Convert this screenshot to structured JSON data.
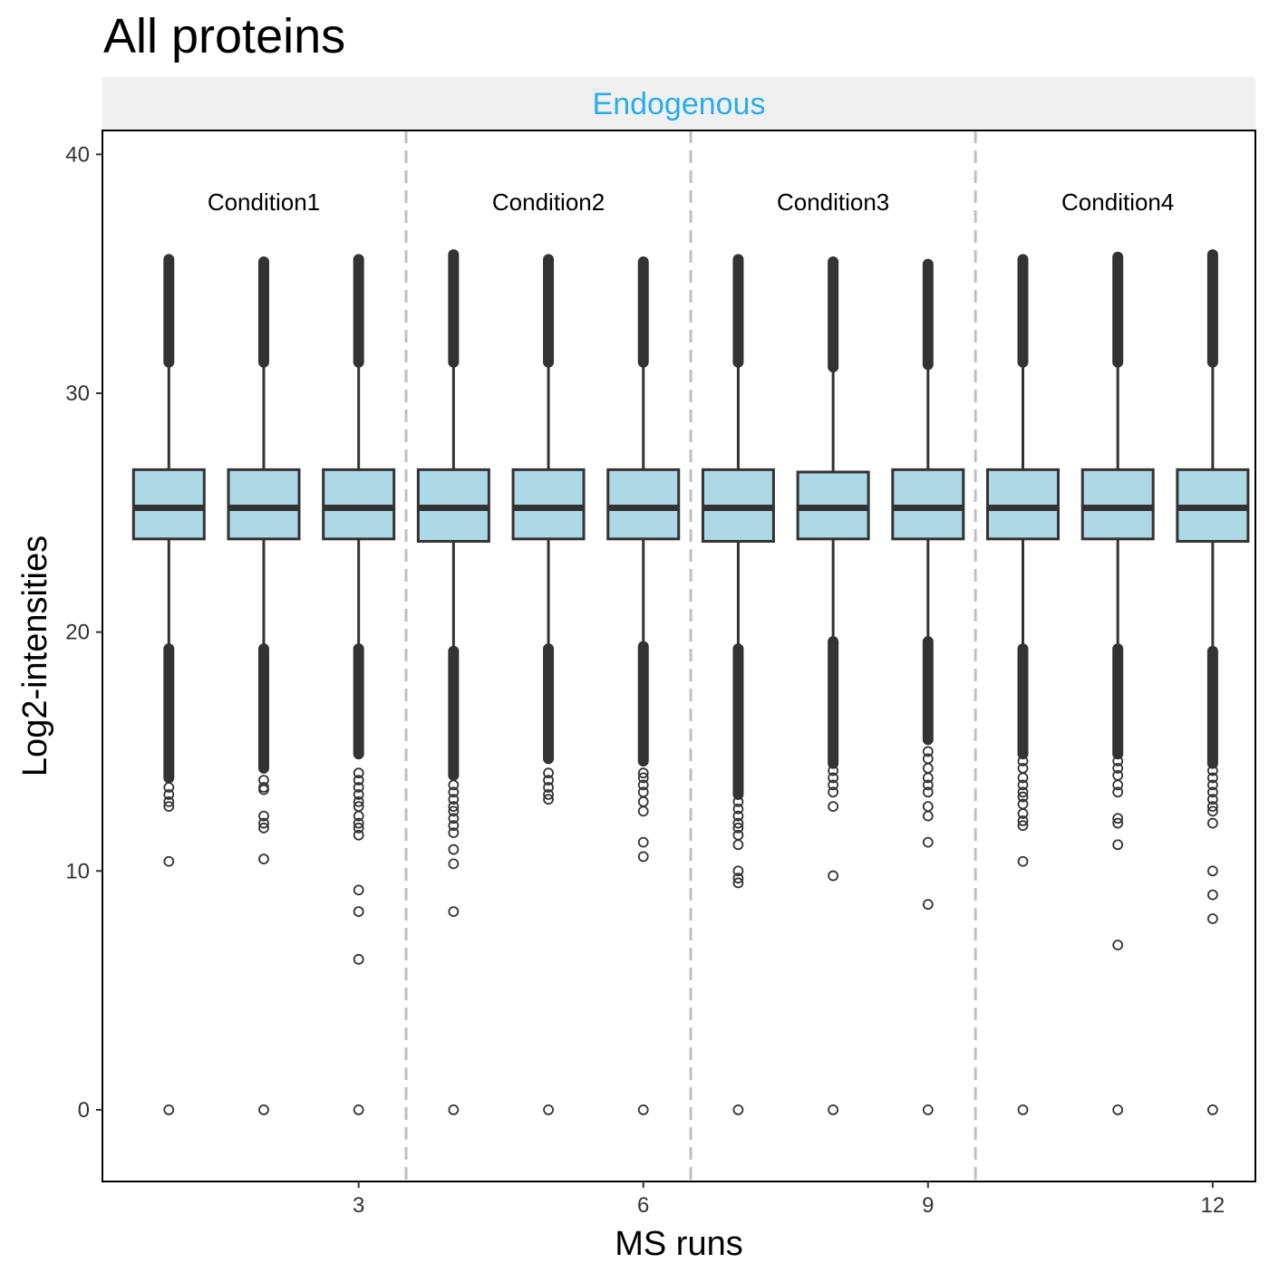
{
  "title": "All proteins",
  "facet_label": "Endogenous",
  "colors": {
    "facet_text": "#29aee8",
    "strip_bg": "#f0f0f0",
    "box_fill": "#add8e6",
    "box_stroke": "#333333",
    "separator": "#c0c0c0"
  },
  "chart_data": {
    "type": "boxplot",
    "title": "All proteins",
    "facet": "Endogenous",
    "xlabel": "MS runs",
    "ylabel": "Log2-intensities",
    "xlim": [
      0.3,
      12.45
    ],
    "ylim": [
      -3,
      41
    ],
    "x_ticks": [
      3,
      6,
      9,
      12
    ],
    "y_ticks": [
      0,
      10,
      20,
      30,
      40
    ],
    "condition_separators": [
      3.5,
      6.5,
      9.5
    ],
    "conditions": [
      {
        "label": "Condition1",
        "x": 2
      },
      {
        "label": "Condition2",
        "x": 5
      },
      {
        "label": "Condition3",
        "x": 8
      },
      {
        "label": "Condition4",
        "x": 11
      }
    ],
    "condition_label_y": 38,
    "grid": false,
    "boxes": [
      {
        "run": 1,
        "q1": 23.9,
        "median": 25.2,
        "q3": 26.8,
        "whisker_low": 19.3,
        "whisker_high": 31.3,
        "outliers_high_max": 35.6,
        "outliers_low_min": 13.9,
        "outliers": [
          13.5,
          13.2,
          12.9,
          12.7,
          10.4,
          0
        ]
      },
      {
        "run": 2,
        "q1": 23.9,
        "median": 25.2,
        "q3": 26.8,
        "whisker_low": 19.3,
        "whisker_high": 31.3,
        "outliers_high_max": 35.5,
        "outliers_low_min": 14.3,
        "outliers": [
          13.8,
          13.5,
          13.4,
          12.3,
          12.0,
          11.8,
          10.5,
          0
        ]
      },
      {
        "run": 3,
        "q1": 23.9,
        "median": 25.2,
        "q3": 26.8,
        "whisker_low": 19.3,
        "whisker_high": 31.3,
        "outliers_high_max": 35.6,
        "outliers_low_min": 14.9,
        "outliers": [
          14.1,
          13.8,
          13.5,
          13.2,
          12.9,
          12.7,
          12.3,
          12.0,
          11.8,
          11.5,
          9.2,
          8.3,
          6.3,
          0
        ]
      },
      {
        "run": 4,
        "q1": 23.8,
        "median": 25.2,
        "q3": 26.8,
        "whisker_low": 19.2,
        "whisker_high": 31.3,
        "outliers_high_max": 35.8,
        "outliers_low_min": 14.0,
        "outliers": [
          13.6,
          13.3,
          13.0,
          12.7,
          12.5,
          12.2,
          11.9,
          11.6,
          10.9,
          10.3,
          8.3,
          0
        ]
      },
      {
        "run": 5,
        "q1": 23.9,
        "median": 25.2,
        "q3": 26.8,
        "whisker_low": 19.3,
        "whisker_high": 31.3,
        "outliers_high_max": 35.6,
        "outliers_low_min": 14.7,
        "outliers": [
          14.1,
          13.8,
          13.5,
          13.2,
          13.0,
          0
        ]
      },
      {
        "run": 6,
        "q1": 23.9,
        "median": 25.2,
        "q3": 26.8,
        "whisker_low": 19.4,
        "whisker_high": 31.3,
        "outliers_high_max": 35.5,
        "outliers_low_min": 14.6,
        "outliers": [
          14.1,
          13.9,
          13.6,
          13.3,
          12.9,
          12.5,
          11.2,
          10.6,
          0
        ]
      },
      {
        "run": 7,
        "q1": 23.8,
        "median": 25.2,
        "q3": 26.8,
        "whisker_low": 19.3,
        "whisker_high": 31.3,
        "outliers_high_max": 35.6,
        "outliers_low_min": 13.2,
        "outliers": [
          12.9,
          12.6,
          12.3,
          12.0,
          11.8,
          11.5,
          11.1,
          10.0,
          9.7,
          9.5,
          0
        ]
      },
      {
        "run": 8,
        "q1": 23.9,
        "median": 25.2,
        "q3": 26.7,
        "whisker_low": 19.6,
        "whisker_high": 31.1,
        "outliers_high_max": 35.5,
        "outliers_low_min": 14.5,
        "outliers": [
          14.2,
          13.9,
          13.6,
          13.3,
          12.7,
          9.8,
          0
        ]
      },
      {
        "run": 9,
        "q1": 23.9,
        "median": 25.2,
        "q3": 26.8,
        "whisker_low": 19.6,
        "whisker_high": 31.2,
        "outliers_high_max": 35.4,
        "outliers_low_min": 15.5,
        "outliers": [
          15.0,
          14.7,
          14.3,
          13.9,
          13.6,
          13.3,
          12.7,
          12.3,
          11.2,
          8.6,
          0
        ]
      },
      {
        "run": 10,
        "q1": 23.9,
        "median": 25.2,
        "q3": 26.8,
        "whisker_low": 19.3,
        "whisker_high": 31.3,
        "outliers_high_max": 35.6,
        "outliers_low_min": 14.9,
        "outliers": [
          14.6,
          14.3,
          13.9,
          13.6,
          13.3,
          13.1,
          12.8,
          12.4,
          12.1,
          11.9,
          10.4,
          0
        ]
      },
      {
        "run": 11,
        "q1": 23.9,
        "median": 25.2,
        "q3": 26.8,
        "whisker_low": 19.3,
        "whisker_high": 31.3,
        "outliers_high_max": 35.7,
        "outliers_low_min": 14.9,
        "outliers": [
          14.6,
          14.3,
          14.0,
          13.6,
          13.3,
          12.2,
          12.0,
          11.1,
          6.9,
          0
        ]
      },
      {
        "run": 12,
        "q1": 23.8,
        "median": 25.2,
        "q3": 26.8,
        "whisker_low": 19.2,
        "whisker_high": 31.3,
        "outliers_high_max": 35.8,
        "outliers_low_min": 14.5,
        "outliers": [
          14.2,
          13.9,
          13.6,
          13.3,
          13.0,
          12.7,
          12.5,
          12.0,
          10.0,
          9.0,
          8.0,
          0
        ]
      }
    ]
  }
}
